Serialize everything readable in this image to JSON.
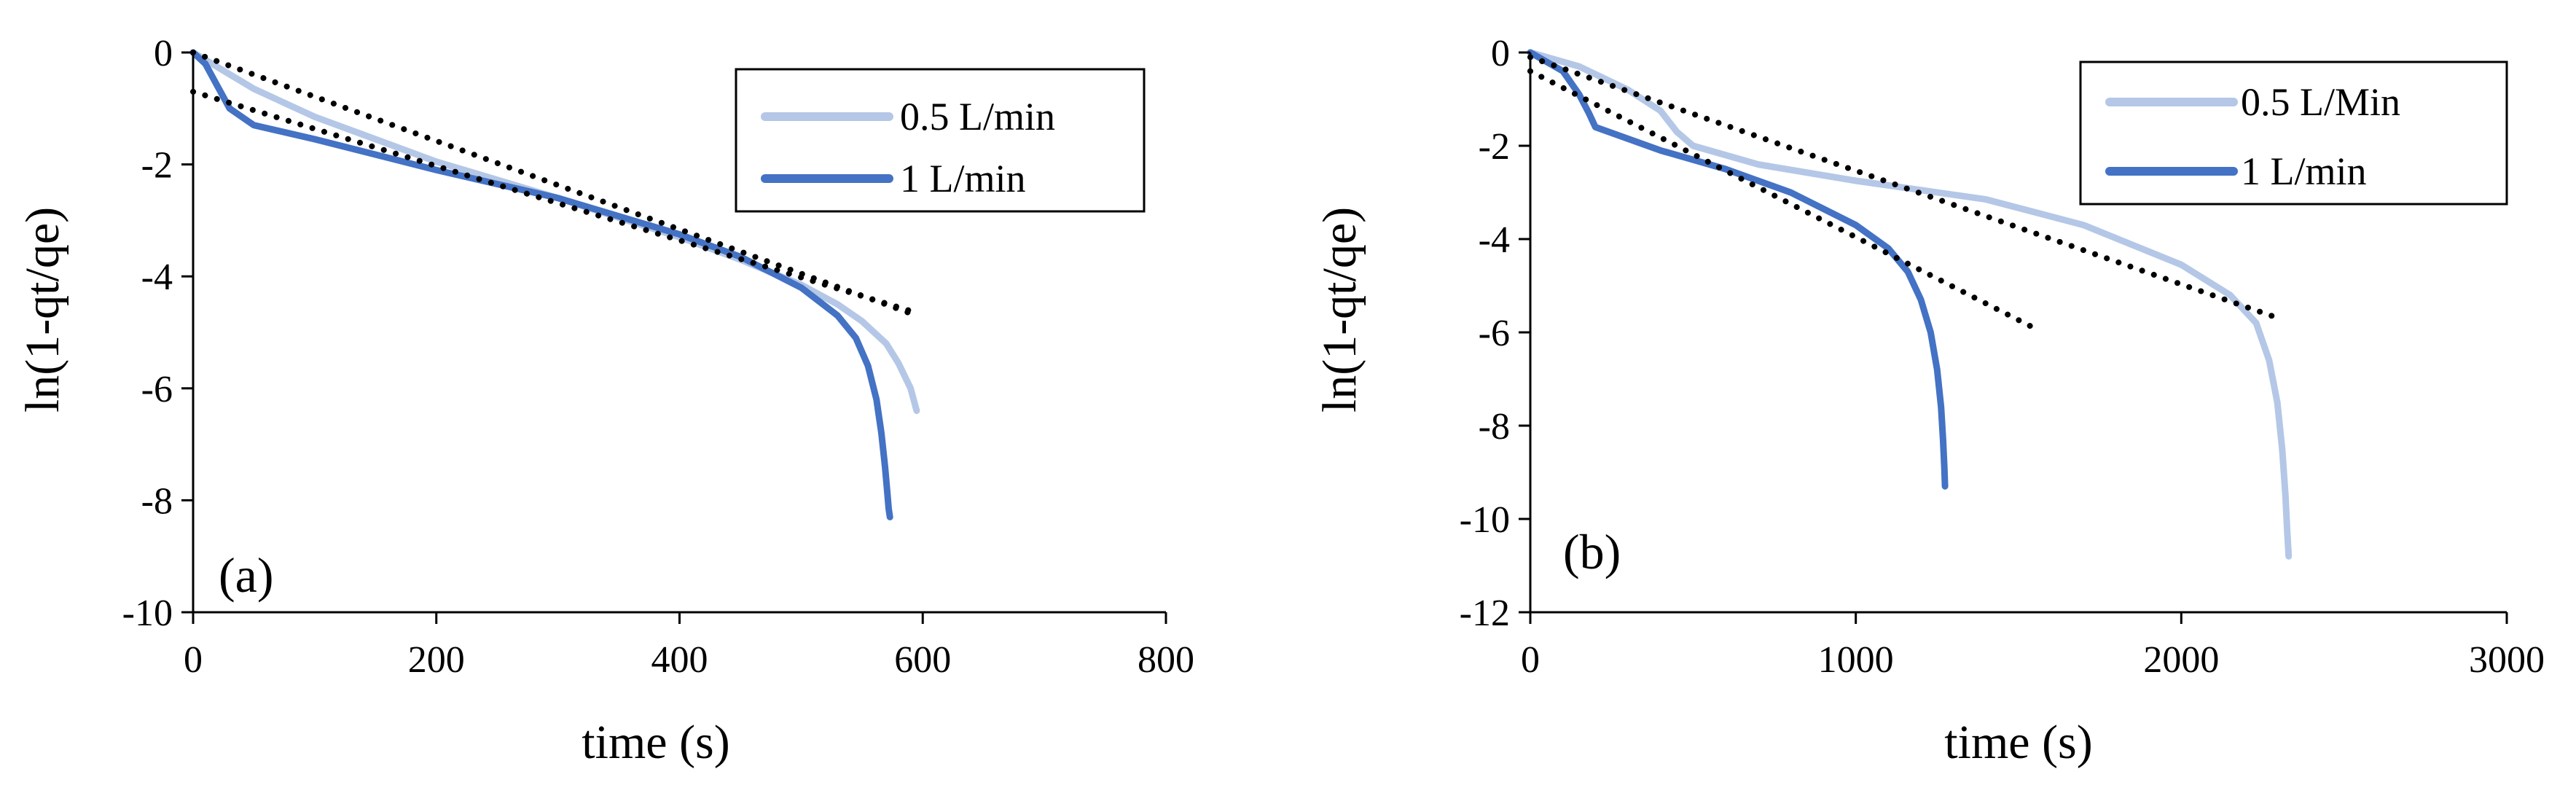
{
  "colors": {
    "light": "#b4c7e7",
    "dark": "#4472c4",
    "trend": "#000000",
    "axis": "#000000"
  },
  "chart_data": [
    {
      "type": "line",
      "panel": "(a)",
      "xlabel": "time (s)",
      "ylabel": "ln(1-qt/qe)",
      "xlim": [
        0,
        800
      ],
      "ylim": [
        -10,
        0
      ],
      "xticks": [
        0,
        200,
        400,
        600,
        800
      ],
      "yticks": [
        0,
        -2,
        -4,
        -6,
        -8,
        -10
      ],
      "legend_position": "top-right",
      "series": [
        {
          "name": "0.5 L/min",
          "color": "#b4c7e7",
          "x": [
            0,
            50,
            100,
            200,
            300,
            400,
            450,
            500,
            530,
            550,
            570,
            580,
            590,
            595
          ],
          "y": [
            0,
            -0.65,
            -1.15,
            -1.95,
            -2.6,
            -3.3,
            -3.7,
            -4.15,
            -4.5,
            -4.8,
            -5.2,
            -5.55,
            -6.0,
            -6.4
          ]
        },
        {
          "name": "1 L/min",
          "color": "#4472c4",
          "x": [
            0,
            10,
            20,
            30,
            50,
            100,
            200,
            300,
            400,
            450,
            500,
            530,
            545,
            555,
            562,
            566,
            569,
            571,
            572,
            573
          ],
          "y": [
            0,
            -0.2,
            -0.6,
            -1.0,
            -1.3,
            -1.55,
            -2.1,
            -2.6,
            -3.25,
            -3.65,
            -4.2,
            -4.7,
            -5.1,
            -5.6,
            -6.2,
            -6.8,
            -7.4,
            -7.9,
            -8.15,
            -8.3
          ]
        },
        {
          "name": "trend 0.5 L/min",
          "color": "#000000",
          "dotted": true,
          "x": [
            0,
            595
          ],
          "y": [
            0,
            -4.7
          ]
        },
        {
          "name": "trend 1 L/min",
          "color": "#000000",
          "dotted": true,
          "x": [
            0,
            595
          ],
          "y": [
            -0.7,
            -4.65
          ]
        }
      ]
    },
    {
      "type": "line",
      "panel": "(b)",
      "xlabel": "time (s)",
      "ylabel": "ln(1-qt/qe)",
      "xlim": [
        0,
        3000
      ],
      "ylim": [
        -12,
        0
      ],
      "xticks": [
        0,
        1000,
        2000,
        3000
      ],
      "yticks": [
        0,
        -2,
        -4,
        -6,
        -8,
        -10,
        -12
      ],
      "legend_position": "top-right",
      "series": [
        {
          "name": "0.5 L/Min",
          "color": "#b4c7e7",
          "x": [
            0,
            150,
            300,
            400,
            450,
            500,
            700,
            1000,
            1400,
            1700,
            2000,
            2150,
            2230,
            2270,
            2295,
            2310,
            2320,
            2325,
            2330
          ],
          "y": [
            0,
            -0.3,
            -0.8,
            -1.25,
            -1.7,
            -2.0,
            -2.4,
            -2.75,
            -3.15,
            -3.7,
            -4.55,
            -5.2,
            -5.8,
            -6.6,
            -7.5,
            -8.5,
            -9.5,
            -10.2,
            -10.8
          ]
        },
        {
          "name": "1 L/min",
          "color": "#4472c4",
          "x": [
            0,
            100,
            150,
            180,
            200,
            400,
            600,
            800,
            1000,
            1100,
            1160,
            1200,
            1230,
            1250,
            1262,
            1268,
            1272,
            1274
          ],
          "y": [
            0,
            -0.4,
            -0.9,
            -1.3,
            -1.6,
            -2.1,
            -2.5,
            -3.0,
            -3.7,
            -4.2,
            -4.7,
            -5.3,
            -6.0,
            -6.8,
            -7.6,
            -8.3,
            -8.9,
            -9.3
          ]
        },
        {
          "name": "trend 0.5 L/Min",
          "color": "#000000",
          "dotted": true,
          "x": [
            0,
            2300
          ],
          "y": [
            -0.1,
            -5.7
          ]
        },
        {
          "name": "trend 1 L/min",
          "color": "#000000",
          "dotted": true,
          "x": [
            0,
            1560
          ],
          "y": [
            -0.4,
            -5.95
          ]
        }
      ]
    }
  ]
}
